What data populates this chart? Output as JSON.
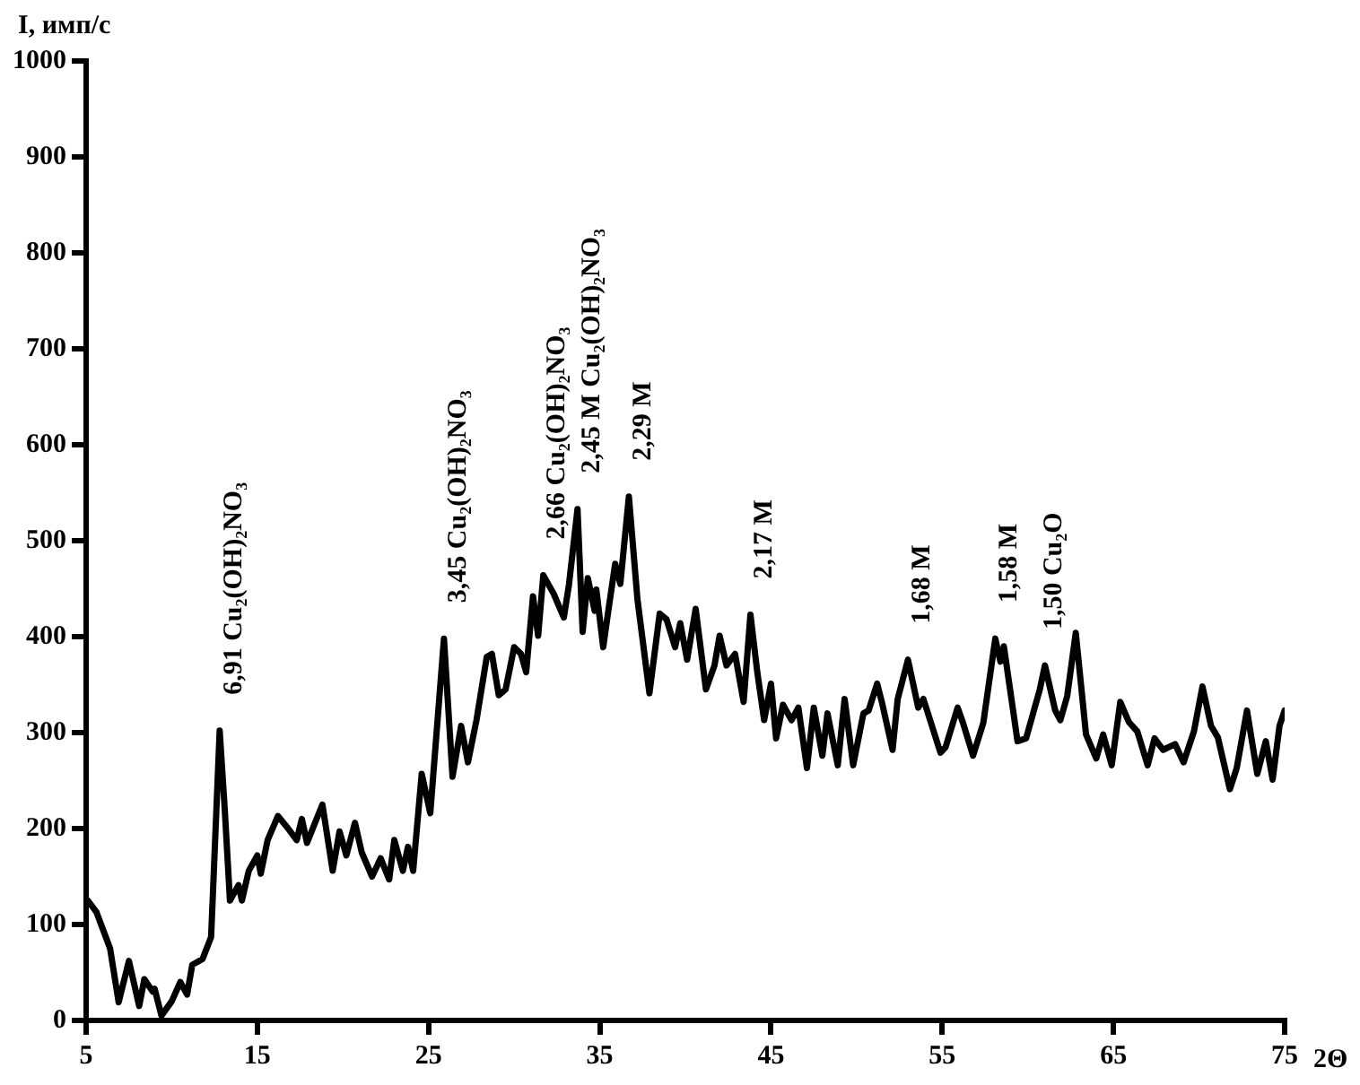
{
  "chart_data": {
    "type": "line",
    "xlabel": "2Θ",
    "ylabel": "I, имп/с",
    "color": "#000000",
    "marker": "none",
    "line_style": "solid",
    "grid": false,
    "legend": false,
    "xlim": [
      5,
      75
    ],
    "xticks": [
      5,
      15,
      25,
      35,
      45,
      55,
      65,
      75
    ],
    "ylim": [
      0,
      1000
    ],
    "yticks": [
      0,
      100,
      200,
      300,
      400,
      500,
      600,
      700,
      800,
      900,
      1000
    ],
    "x": [
      5.1,
      5.6,
      6.4,
      6.9,
      7.5,
      8.1,
      8.4,
      8.9,
      9.0,
      9.4,
      10.0,
      10.5,
      10.9,
      11.2,
      11.8,
      12.3,
      12.8,
      13.1,
      13.4,
      13.9,
      14.1,
      14.5,
      15.0,
      15.2,
      15.6,
      16.2,
      16.8,
      17.3,
      17.6,
      17.9,
      18.8,
      19.4,
      19.8,
      20.2,
      20.7,
      21.1,
      21.7,
      22.2,
      22.7,
      23.0,
      23.5,
      23.8,
      24.1,
      24.6,
      25.1,
      25.9,
      26.4,
      26.9,
      27.3,
      27.8,
      28.4,
      28.7,
      29.1,
      29.5,
      30.0,
      30.4,
      30.7,
      31.1,
      31.4,
      31.7,
      32.3,
      32.9,
      33.2,
      33.7,
      34.0,
      34.3,
      34.7,
      34.8,
      35.2,
      35.5,
      35.9,
      36.2,
      36.7,
      37.2,
      37.9,
      38.5,
      38.9,
      39.4,
      39.7,
      40.1,
      40.6,
      41.2,
      41.7,
      42.0,
      42.4,
      42.9,
      43.4,
      43.8,
      44.2,
      44.6,
      45.0,
      45.3,
      45.7,
      46.2,
      46.6,
      47.1,
      47.5,
      48.0,
      48.3,
      48.9,
      49.3,
      49.8,
      50.4,
      50.7,
      51.2,
      51.5,
      52.1,
      52.4,
      53.0,
      53.6,
      53.9,
      54.9,
      55.2,
      55.9,
      56.2,
      56.8,
      57.4,
      58.1,
      58.4,
      58.6,
      59.4,
      59.9,
      60.7,
      61.0,
      61.6,
      61.9,
      62.3,
      62.8,
      63.4,
      64.0,
      64.4,
      64.9,
      65.4,
      65.9,
      66.4,
      67.0,
      67.4,
      67.9,
      68.6,
      69.1,
      69.7,
      70.2,
      70.7,
      71.1,
      71.8,
      72.2,
      72.8,
      73.4,
      73.9,
      74.3,
      74.7,
      75.0
    ],
    "values": [
      125,
      113,
      75,
      19,
      62,
      15,
      43,
      30,
      33,
      5,
      20,
      40,
      27,
      58,
      64,
      87,
      302,
      219,
      125,
      141,
      125,
      156,
      172,
      153,
      188,
      213,
      200,
      188,
      210,
      185,
      225,
      156,
      197,
      172,
      206,
      175,
      150,
      169,
      147,
      188,
      156,
      181,
      156,
      257,
      216,
      398,
      254,
      307,
      269,
      313,
      379,
      382,
      339,
      345,
      389,
      382,
      363,
      442,
      401,
      464,
      445,
      420,
      454,
      533,
      405,
      461,
      427,
      449,
      389,
      427,
      476,
      455,
      546,
      439,
      341,
      424,
      418,
      389,
      414,
      376,
      429,
      345,
      370,
      401,
      370,
      382,
      332,
      423,
      363,
      313,
      351,
      294,
      329,
      313,
      326,
      263,
      326,
      276,
      320,
      266,
      335,
      266,
      320,
      323,
      351,
      330,
      282,
      335,
      376,
      326,
      335,
      279,
      285,
      326,
      311,
      276,
      310,
      398,
      374,
      390,
      291,
      294,
      345,
      370,
      323,
      313,
      338,
      404,
      298,
      273,
      298,
      266,
      332,
      311,
      301,
      266,
      294,
      282,
      288,
      269,
      301,
      348,
      307,
      295,
      241,
      263,
      323,
      257,
      291,
      251,
      307,
      323
    ],
    "annotations": [
      {
        "text": "6,91 Cu₂(OH)₂NO₃",
        "x": 12.8,
        "y": 302
      },
      {
        "text": "3,45 Cu₂(OH)₂NO₃",
        "x": 25.9,
        "y": 398
      },
      {
        "text": "2,66 Cu₂(OH)₂NO₃",
        "x": 31.7,
        "y": 464
      },
      {
        "text": "2,45 M Cu₂(OH)₂NO₃",
        "x": 33.7,
        "y": 533
      },
      {
        "text": "2,29 M",
        "x": 36.7,
        "y": 546
      },
      {
        "text": "2,17 M",
        "x": 43.8,
        "y": 423
      },
      {
        "text": "1,68 M",
        "x": 53.0,
        "y": 376
      },
      {
        "text": "1,58 M",
        "x": 58.1,
        "y": 398
      },
      {
        "text": "1,50 Cu₂O",
        "x": 60.7,
        "y": 345
      }
    ]
  }
}
